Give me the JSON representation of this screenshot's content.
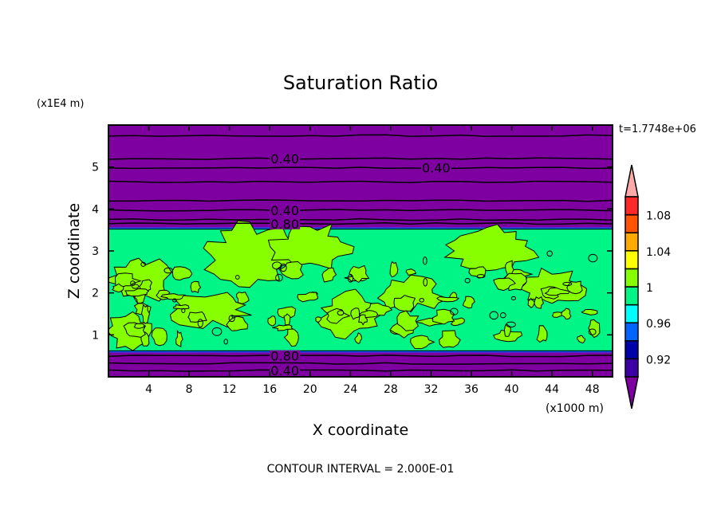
{
  "chart_data": {
    "type": "heatmap",
    "subtype": "filled-contour",
    "title": "Saturation Ratio",
    "xlabel": "X coordinate",
    "ylabel": "Z coordinate",
    "x_unit_label": "(x1000 m)",
    "y_unit_label": "(x1E4 m)",
    "time_label": "t=1.7748e+06",
    "footer": "CONTOUR INTERVAL = 2.000E-01",
    "xlim": [
      0,
      50
    ],
    "ylim": [
      0,
      6
    ],
    "x_ticks": [
      4,
      8,
      12,
      16,
      20,
      24,
      28,
      32,
      36,
      40,
      44,
      48
    ],
    "x_tick_labels": [
      "4",
      "8",
      "12",
      "16",
      "20",
      "24",
      "28",
      "32",
      "36",
      "40",
      "44",
      "48"
    ],
    "y_ticks": [
      1,
      2,
      3,
      4,
      5
    ],
    "y_tick_labels": [
      "1",
      "2",
      "3",
      "4",
      "5"
    ],
    "contour_labels": [
      {
        "text": "0.40",
        "x": 17.5,
        "y": 5.2
      },
      {
        "text": "0.40",
        "x": 32.5,
        "y": 4.98
      },
      {
        "text": "0.40",
        "x": 17.5,
        "y": 3.97
      },
      {
        "text": "0.80",
        "x": 17.5,
        "y": 3.65
      },
      {
        "text": "0.80",
        "x": 17.5,
        "y": 0.5
      },
      {
        "text": "0.40",
        "x": 17.5,
        "y": 0.15
      }
    ],
    "contour_lines_z": [
      0.15,
      0.32,
      0.5,
      3.65,
      3.75,
      3.97,
      4.2,
      4.65,
      4.98,
      5.2,
      5.75
    ],
    "moist_layer_z": [
      0.62,
      3.52
    ],
    "colorbar": {
      "levels": [
        0.9,
        0.92,
        0.94,
        0.96,
        0.98,
        1.0,
        1.02,
        1.04,
        1.06,
        1.08,
        1.1
      ],
      "tick_labels": [
        "0.92",
        "0.96",
        "1",
        "1.04",
        "1.08"
      ],
      "tick_values": [
        0.92,
        0.96,
        1.0,
        1.04,
        1.08
      ],
      "colors": [
        "#3c00a4",
        "#0000aa",
        "#0064ff",
        "#00ffff",
        "#00f587",
        "#87ff00",
        "#ffff00",
        "#ffaa00",
        "#ff5500",
        "#ff2828"
      ],
      "under_color": "#7f00a0",
      "over_color": "#ffaaaa"
    }
  }
}
